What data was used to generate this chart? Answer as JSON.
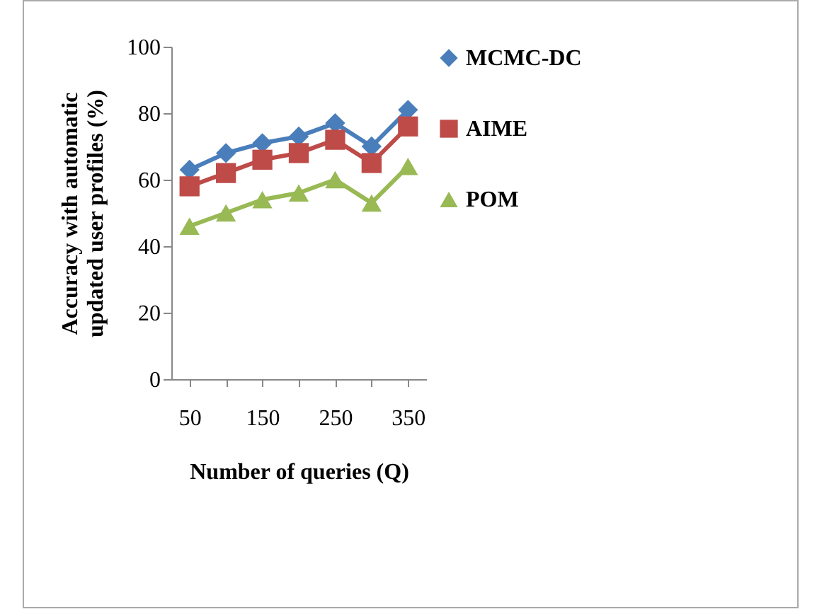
{
  "chart_data": {
    "type": "line",
    "xlabel": "Number of queries (Q)",
    "ylabel": "Accuracy with automatic updated user profiles (%)",
    "categories": [
      "50",
      null,
      "150",
      null,
      "250",
      null,
      "350"
    ],
    "series": [
      {
        "name": "MCMC-DC",
        "color": "#4a7ebb",
        "marker": "diamond",
        "values": [
          63,
          68,
          71,
          73,
          77,
          70,
          81
        ]
      },
      {
        "name": "AIME",
        "color": "#be4b48",
        "marker": "square",
        "values": [
          58,
          62,
          66,
          68,
          72,
          65,
          76
        ]
      },
      {
        "name": "POM",
        "color": "#98b954",
        "marker": "triangle",
        "values": [
          46,
          50,
          54,
          56,
          60,
          53,
          64
        ]
      }
    ],
    "ylim": [
      0,
      100
    ],
    "yticks": [
      0,
      20,
      40,
      60,
      80,
      100
    ],
    "grid": false,
    "legend": "right"
  }
}
